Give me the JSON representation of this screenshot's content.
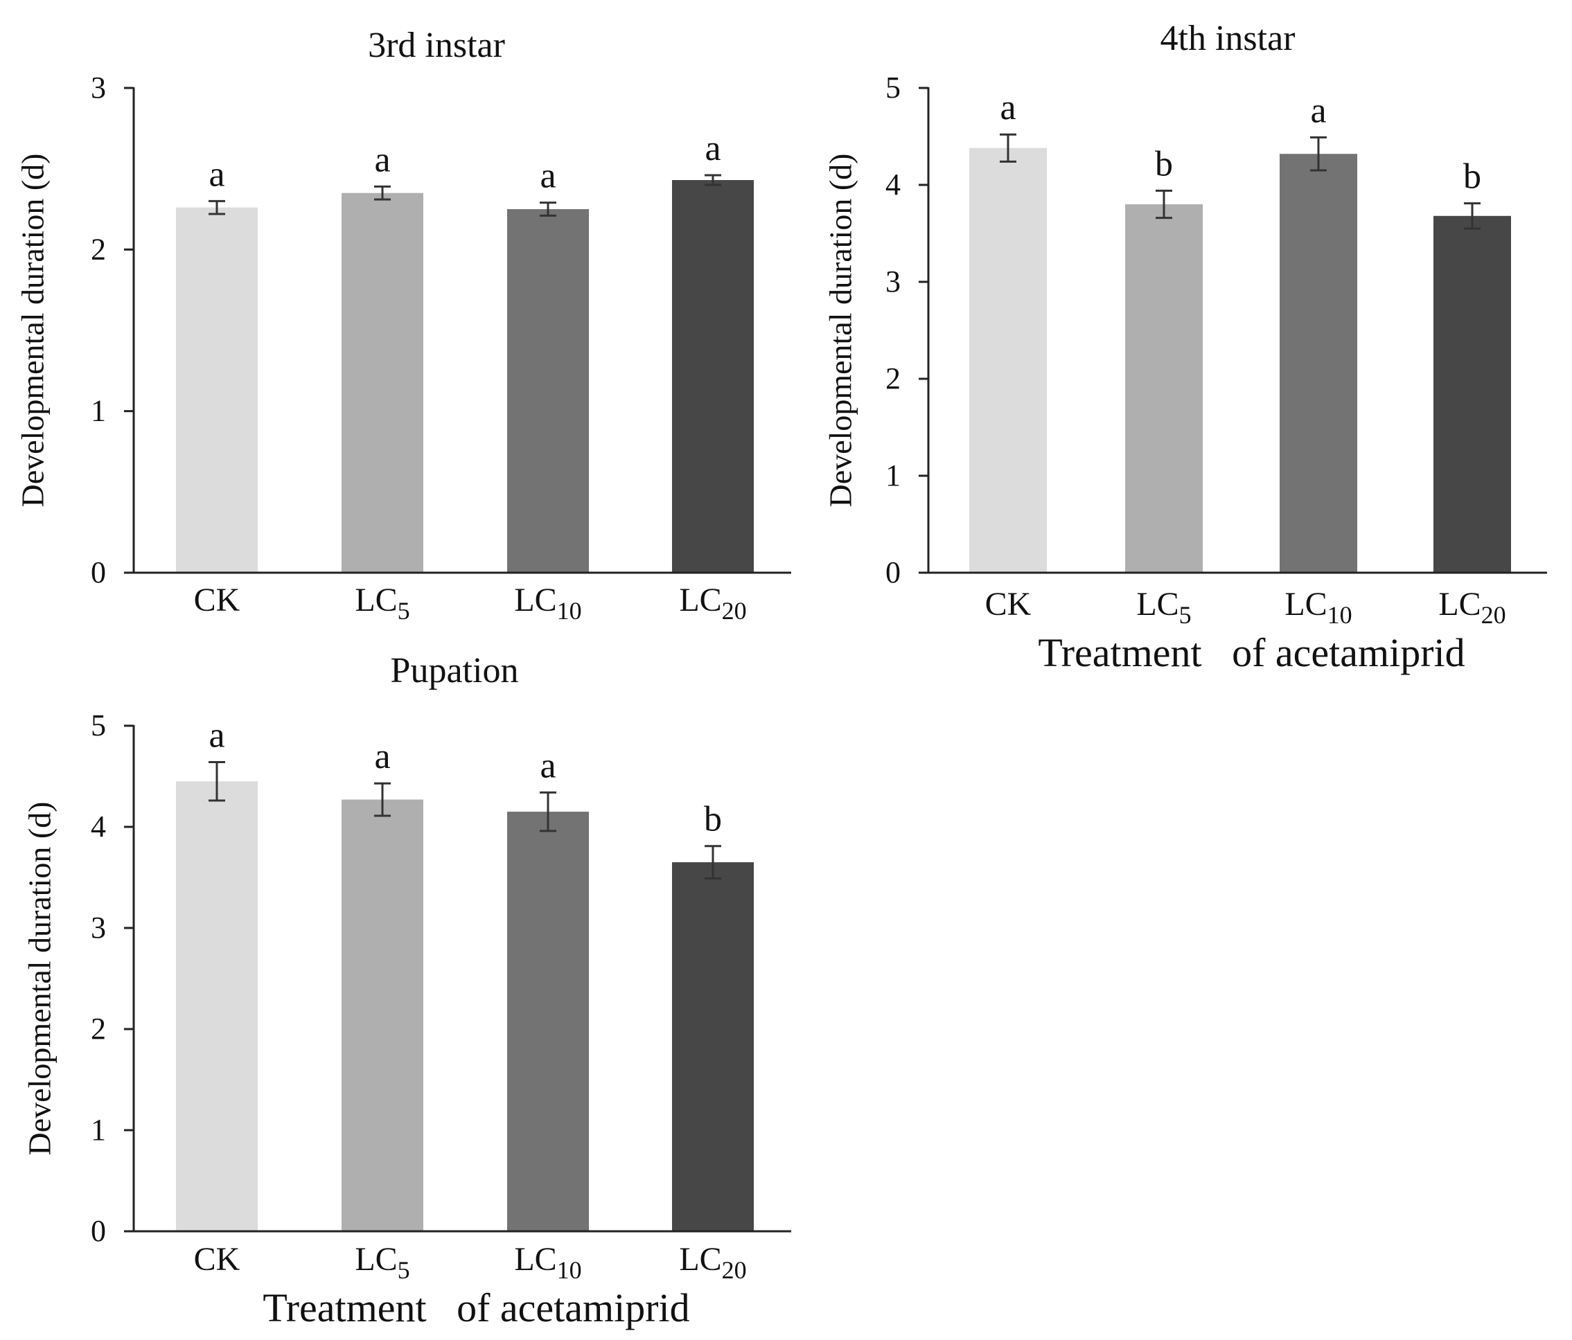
{
  "colors": [
    "#dcdcdc",
    "#afafaf",
    "#737373",
    "#474747"
  ],
  "chart_data": [
    {
      "type": "bar",
      "title": "3rd instar",
      "ylabel": "Developmental duration (d)",
      "xlabel": "",
      "ylim": [
        0,
        3
      ],
      "yticks": [
        "0",
        "1",
        "2",
        "3"
      ],
      "categories": [
        {
          "base": "LC",
          "sub": "",
          "label": "CK"
        },
        {
          "base": "LC",
          "sub": "5",
          "label": "LC5"
        },
        {
          "base": "LC",
          "sub": "10",
          "label": "LC10"
        },
        {
          "base": "LC",
          "sub": "20",
          "label": "LC20"
        }
      ],
      "values": [
        2.26,
        2.35,
        2.25,
        2.43
      ],
      "errors": [
        0.04,
        0.04,
        0.04,
        0.03
      ],
      "significance": [
        "a",
        "a",
        "a",
        "a"
      ],
      "grid": false,
      "legend": "none"
    },
    {
      "type": "bar",
      "title": "4th instar",
      "ylabel": "Developmental duration (d)",
      "xlabel": "Treatment   of acetamiprid",
      "ylim": [
        0,
        5
      ],
      "yticks": [
        "0",
        "1",
        "2",
        "3",
        "4",
        "5"
      ],
      "categories": [
        {
          "base": "LC",
          "sub": "",
          "label": "CK"
        },
        {
          "base": "LC",
          "sub": "5",
          "label": "LC5"
        },
        {
          "base": "LC",
          "sub": "10",
          "label": "LC10"
        },
        {
          "base": "LC",
          "sub": "20",
          "label": "LC20"
        }
      ],
      "values": [
        4.38,
        3.8,
        4.32,
        3.68
      ],
      "errors": [
        0.14,
        0.14,
        0.17,
        0.13
      ],
      "significance": [
        "a",
        "b",
        "a",
        "b"
      ],
      "grid": false,
      "legend": "none"
    },
    {
      "type": "bar",
      "title": "Pupation",
      "ylabel": "Developmental duration (d)",
      "xlabel": "Treatment   of acetamiprid",
      "ylim": [
        0,
        5
      ],
      "yticks": [
        "0",
        "1",
        "2",
        "3",
        "4",
        "5"
      ],
      "categories": [
        {
          "base": "LC",
          "sub": "",
          "label": "CK"
        },
        {
          "base": "LC",
          "sub": "5",
          "label": "LC5"
        },
        {
          "base": "LC",
          "sub": "10",
          "label": "LC10"
        },
        {
          "base": "LC",
          "sub": "20",
          "label": "LC20"
        }
      ],
      "values": [
        4.45,
        4.27,
        4.15,
        3.65
      ],
      "errors": [
        0.19,
        0.16,
        0.19,
        0.16
      ],
      "significance": [
        "a",
        "a",
        "a",
        "b"
      ],
      "grid": false,
      "legend": "none"
    }
  ]
}
